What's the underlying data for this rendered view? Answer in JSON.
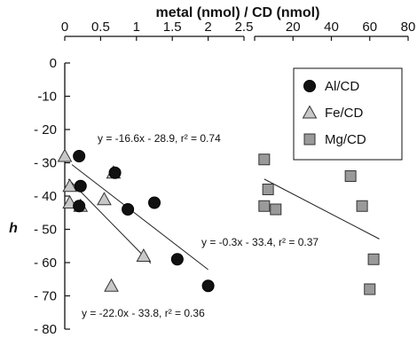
{
  "chart_data": {
    "type": "scatter",
    "title": "",
    "xlabel": "metal (nmol) / CD (nmol)",
    "ylabel": "h",
    "ylim": [
      -80,
      0
    ],
    "yticks": [
      0,
      -10,
      -20,
      -30,
      -40,
      -50,
      -60,
      -70,
      -80
    ],
    "ytick_labels": [
      "0",
      "-10",
      "- 20",
      "- 30",
      "- 40",
      "- 50",
      "- 60",
      "- 70",
      "- 80"
    ],
    "x_panels": [
      {
        "range": [
          0,
          2.5
        ],
        "ticks": [
          0,
          0.5,
          1,
          1.5,
          2,
          2.5
        ],
        "tick_labels": [
          "0",
          "0.5",
          "1",
          "1.5",
          "2",
          "2.5"
        ]
      },
      {
        "range": [
          0,
          80
        ],
        "ticks": [
          0,
          20,
          40,
          60,
          80
        ],
        "tick_labels": [
          "",
          "20",
          "40",
          "60",
          "80"
        ]
      }
    ],
    "legend": {
      "position": "top-right",
      "entries": [
        {
          "label": "Al/CD",
          "marker": "circle",
          "color": "#111111"
        },
        {
          "label": "Fe/CD",
          "marker": "triangle",
          "color": "#c8c8c8"
        },
        {
          "label": "Mg/CD",
          "marker": "square",
          "color": "#9a9a9a"
        }
      ]
    },
    "series": [
      {
        "name": "Al/CD",
        "panel": 0,
        "marker": "circle",
        "color": "#111111",
        "points": [
          [
            0.2,
            -28
          ],
          [
            0.22,
            -37
          ],
          [
            0.2,
            -43
          ],
          [
            0.7,
            -33
          ],
          [
            0.88,
            -44
          ],
          [
            1.25,
            -42
          ],
          [
            1.57,
            -59
          ],
          [
            2.0,
            -67
          ]
        ],
        "fit": {
          "equation": "y = -16.6x - 28.9, r² = 0.74",
          "slope": -16.6,
          "intercept": -28.9,
          "x_range": [
            0.1,
            2.0
          ]
        }
      },
      {
        "name": "Fe/CD",
        "panel": 0,
        "marker": "triangle",
        "color": "#c8c8c8",
        "points": [
          [
            0.0,
            -28
          ],
          [
            0.07,
            -37
          ],
          [
            0.07,
            -42
          ],
          [
            0.22,
            -43
          ],
          [
            0.55,
            -41
          ],
          [
            0.68,
            -33
          ],
          [
            1.1,
            -58
          ],
          [
            0.65,
            -67
          ]
        ],
        "fit": {
          "equation": "y = -22.0x - 33.8, r² = 0.36",
          "slope": -22.0,
          "intercept": -33.8,
          "x_range": [
            0.05,
            1.2
          ]
        }
      },
      {
        "name": "Mg/CD",
        "panel": 1,
        "marker": "square",
        "color": "#9a9a9a",
        "points": [
          [
            5,
            -29
          ],
          [
            5,
            -43
          ],
          [
            7,
            -38
          ],
          [
            11,
            -44
          ],
          [
            50,
            -34
          ],
          [
            56,
            -43
          ],
          [
            62,
            -59
          ],
          [
            60,
            -68
          ]
        ],
        "fit": {
          "equation": "y = -0.3x - 33.4, r² = 0.37",
          "slope": -0.3,
          "intercept": -33.4,
          "x_range": [
            5,
            65
          ]
        }
      }
    ]
  }
}
